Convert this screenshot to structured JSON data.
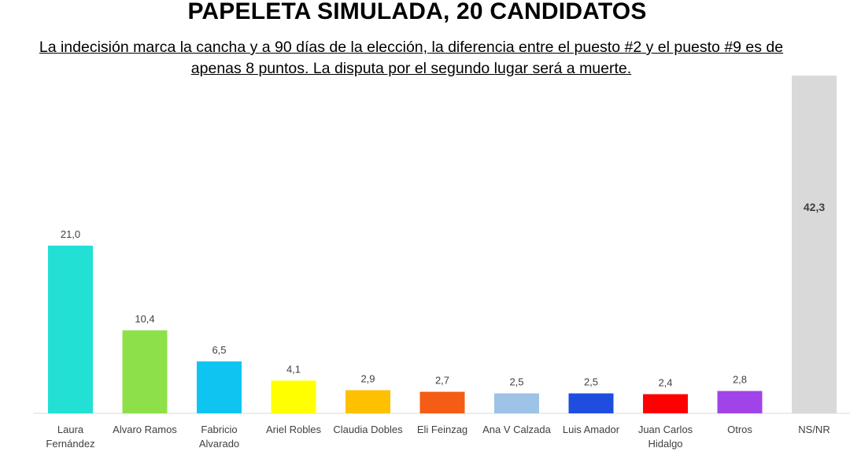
{
  "title": "PAPELETA SIMULADA, 20 CANDIDATOS",
  "subtitle": "La indecisión marca la cancha y a 90 días de la elección, la diferencia entre el puesto #2 y el puesto #9 es de apenas 8 puntos. La disputa por el segundo lugar será a muerte.",
  "chart_data": {
    "type": "bar",
    "categories": [
      "Laura Fernández",
      "Alvaro Ramos",
      "Fabricio Alvarado",
      "Ariel Robles",
      "Claudia Dobles",
      "Eli Feinzag",
      "Ana V Calzada",
      "Luis Amador",
      "Juan Carlos Hidalgo",
      "Otros",
      "NS/NR"
    ],
    "category_lines": [
      [
        "Laura",
        "Fernández"
      ],
      [
        "Alvaro Ramos"
      ],
      [
        "Fabricio",
        "Alvarado"
      ],
      [
        "Ariel Robles"
      ],
      [
        "Claudia Dobles"
      ],
      [
        "Eli Feinzag"
      ],
      [
        "Ana V Calzada"
      ],
      [
        "Luis Amador"
      ],
      [
        "Juan Carlos",
        "Hidalgo"
      ],
      [
        "Otros"
      ],
      [
        "NS/NR"
      ]
    ],
    "values": [
      21.0,
      10.4,
      6.5,
      4.1,
      2.9,
      2.7,
      2.5,
      2.5,
      2.4,
      2.8,
      42.3
    ],
    "value_labels": [
      "21,0",
      "10,4",
      "6,5",
      "4,1",
      "2,9",
      "2,7",
      "2,5",
      "2,5",
      "2,4",
      "2,8",
      "42,3"
    ],
    "colors": [
      "#22e0d4",
      "#8ee04a",
      "#0ec5f2",
      "#ffff00",
      "#ffc000",
      "#f55c16",
      "#9dc3e6",
      "#1f4de0",
      "#ff0000",
      "#a044ea",
      "#d9d9d9"
    ],
    "bold_labels": [
      false,
      false,
      false,
      false,
      false,
      false,
      false,
      false,
      false,
      false,
      true
    ],
    "xlabel": "",
    "ylabel": "",
    "ylim": [
      0,
      42.3
    ],
    "grid": false,
    "legend": "none"
  }
}
